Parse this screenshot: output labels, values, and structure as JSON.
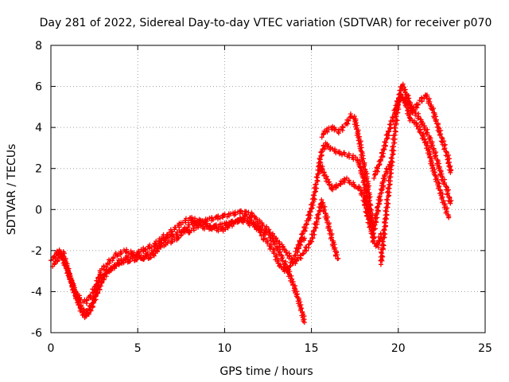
{
  "chart_data": {
    "type": "scatter",
    "title": "Day 281 of 2022, Sidereal Day-to-day VTEC variation (SDTVAR) for receiver p070",
    "xlabel": "GPS time / hours",
    "ylabel": "SDTVAR / TECUs",
    "xlim": [
      0,
      25
    ],
    "ylim": [
      -6,
      8
    ],
    "xticks": [
      0,
      5,
      10,
      15,
      20,
      25
    ],
    "yticks": [
      -6,
      -4,
      -2,
      0,
      2,
      4,
      6,
      8
    ],
    "grid": true,
    "marker": "plus",
    "series": [
      {
        "name": "satellite-track-1",
        "color": "#ff0000",
        "points": [
          [
            0,
            -2.4
          ],
          [
            0.3,
            -2.3
          ],
          [
            0.6,
            -2.2
          ],
          [
            0.9,
            -2.8
          ],
          [
            1.2,
            -3.6
          ],
          [
            1.5,
            -4.3
          ],
          [
            1.8,
            -4.9
          ],
          [
            2.1,
            -5.0
          ],
          [
            2.4,
            -4.6
          ],
          [
            2.7,
            -4.0
          ],
          [
            3.0,
            -3.4
          ],
          [
            3.3,
            -3.0
          ],
          [
            3.6,
            -2.8
          ],
          [
            4.0,
            -2.6
          ],
          [
            4.5,
            -2.5
          ],
          [
            5.0,
            -2.4
          ],
          [
            5.5,
            -2.2
          ],
          [
            6.0,
            -2.0
          ],
          [
            6.5,
            -1.5
          ],
          [
            7.0,
            -1.0
          ],
          [
            7.5,
            -0.7
          ],
          [
            8.0,
            -0.4
          ],
          [
            8.5,
            -0.8
          ],
          [
            9.0,
            -0.9
          ],
          [
            9.5,
            -0.8
          ],
          [
            10.0,
            -0.7
          ],
          [
            10.5,
            -0.6
          ],
          [
            11.0,
            -0.5
          ],
          [
            11.5,
            -0.7
          ],
          [
            12.0,
            -0.9
          ],
          [
            12.5,
            -1.2
          ],
          [
            13.0,
            -1.8
          ],
          [
            13.4,
            -2.5
          ],
          [
            13.8,
            -3.3
          ],
          [
            14.1,
            -4.0
          ],
          [
            14.4,
            -4.8
          ],
          [
            14.6,
            -5.5
          ]
        ]
      },
      {
        "name": "satellite-track-2",
        "color": "#ff0000",
        "points": [
          [
            0.1,
            -2.7
          ],
          [
            0.4,
            -2.5
          ],
          [
            0.7,
            -2.1
          ],
          [
            1.0,
            -3.0
          ],
          [
            1.3,
            -3.9
          ],
          [
            1.6,
            -4.6
          ],
          [
            1.9,
            -5.2
          ],
          [
            2.2,
            -5.1
          ],
          [
            2.5,
            -4.3
          ],
          [
            2.8,
            -3.6
          ],
          [
            3.1,
            -3.1
          ],
          [
            3.5,
            -2.9
          ],
          [
            4.0,
            -2.5
          ],
          [
            4.5,
            -2.3
          ],
          [
            5.0,
            -2.1
          ],
          [
            5.5,
            -1.9
          ],
          [
            6.0,
            -1.7
          ],
          [
            6.5,
            -1.3
          ],
          [
            7.0,
            -1.3
          ],
          [
            7.5,
            -1.0
          ],
          [
            8.0,
            -1.1
          ],
          [
            8.5,
            -0.7
          ],
          [
            9.0,
            -0.5
          ],
          [
            9.5,
            -0.4
          ],
          [
            10.0,
            -0.3
          ],
          [
            10.5,
            -0.2
          ],
          [
            11.0,
            -0.1
          ],
          [
            11.5,
            -0.2
          ],
          [
            12.0,
            -0.6
          ],
          [
            12.5,
            -1.0
          ],
          [
            13.0,
            -1.5
          ],
          [
            13.5,
            -2.0
          ],
          [
            14.0,
            -2.6
          ],
          [
            14.5,
            -2.2
          ],
          [
            15.0,
            -1.5
          ],
          [
            15.3,
            -0.6
          ],
          [
            15.6,
            0.4
          ],
          [
            15.9,
            -0.5
          ],
          [
            16.2,
            -1.5
          ],
          [
            16.5,
            -2.4
          ]
        ]
      },
      {
        "name": "satellite-track-3",
        "color": "#ff0000",
        "points": [
          [
            0.2,
            -2.2
          ],
          [
            0.5,
            -2.0
          ],
          [
            0.8,
            -2.6
          ],
          [
            1.1,
            -3.3
          ],
          [
            1.4,
            -4.0
          ],
          [
            1.7,
            -4.4
          ],
          [
            2.0,
            -4.5
          ],
          [
            2.3,
            -4.2
          ],
          [
            2.6,
            -3.7
          ],
          [
            2.9,
            -3.0
          ],
          [
            3.3,
            -2.6
          ],
          [
            3.8,
            -2.2
          ],
          [
            4.3,
            -2.0
          ],
          [
            4.8,
            -2.2
          ],
          [
            5.3,
            -2.4
          ],
          [
            5.8,
            -2.3
          ],
          [
            6.3,
            -1.8
          ],
          [
            6.8,
            -1.6
          ],
          [
            7.3,
            -1.4
          ],
          [
            7.8,
            -0.9
          ],
          [
            8.3,
            -0.5
          ],
          [
            8.8,
            -0.6
          ],
          [
            9.3,
            -0.9
          ],
          [
            9.8,
            -1.0
          ],
          [
            10.3,
            -0.8
          ],
          [
            10.8,
            -0.5
          ],
          [
            11.3,
            -0.3
          ],
          [
            11.8,
            -0.8
          ],
          [
            12.3,
            -1.4
          ],
          [
            12.8,
            -2.0
          ],
          [
            13.2,
            -2.8
          ],
          [
            13.6,
            -3.0
          ],
          [
            14.0,
            -2.4
          ],
          [
            14.3,
            -1.6
          ],
          [
            14.6,
            -1.4
          ]
        ]
      },
      {
        "name": "satellite-track-4",
        "color": "#ff0000",
        "points": [
          [
            14.2,
            -2.0
          ],
          [
            14.5,
            -1.2
          ],
          [
            14.8,
            -0.5
          ],
          [
            15.1,
            0.4
          ],
          [
            15.3,
            1.4
          ],
          [
            15.5,
            2.2
          ],
          [
            15.8,
            1.6
          ],
          [
            16.2,
            1.0
          ],
          [
            16.6,
            1.2
          ],
          [
            17.0,
            1.5
          ],
          [
            17.4,
            1.2
          ],
          [
            17.8,
            1.0
          ],
          [
            18.0,
            0.6
          ],
          [
            18.3,
            -0.6
          ],
          [
            18.6,
            -1.4
          ]
        ]
      },
      {
        "name": "satellite-track-5",
        "color": "#ff0000",
        "points": [
          [
            15.4,
            2.0
          ],
          [
            15.6,
            2.8
          ],
          [
            15.8,
            3.2
          ],
          [
            16.1,
            3.0
          ],
          [
            16.5,
            2.8
          ],
          [
            16.9,
            2.7
          ],
          [
            17.3,
            2.6
          ],
          [
            17.7,
            2.4
          ],
          [
            18.0,
            1.5
          ],
          [
            18.2,
            0.4
          ],
          [
            18.4,
            -0.6
          ],
          [
            18.6,
            -1.6
          ],
          [
            18.8,
            -1.8
          ],
          [
            19.0,
            -1.2
          ]
        ]
      },
      {
        "name": "satellite-track-6",
        "color": "#ff0000",
        "points": [
          [
            15.6,
            3.6
          ],
          [
            15.9,
            3.9
          ],
          [
            16.2,
            4.0
          ],
          [
            16.6,
            3.8
          ],
          [
            17.0,
            4.2
          ],
          [
            17.3,
            4.6
          ],
          [
            17.5,
            4.4
          ],
          [
            17.8,
            3.2
          ],
          [
            18.0,
            2.2
          ],
          [
            18.2,
            1.5
          ],
          [
            18.4,
            0.0
          ],
          [
            18.6,
            -1.0
          ],
          [
            18.8,
            0.0
          ],
          [
            19.0,
            0.8
          ],
          [
            19.2,
            1.6
          ],
          [
            19.5,
            2.2
          ]
        ]
      },
      {
        "name": "satellite-track-7",
        "color": "#ff0000",
        "points": [
          [
            18.6,
            1.6
          ],
          [
            19.0,
            2.4
          ],
          [
            19.3,
            3.4
          ],
          [
            19.6,
            4.2
          ],
          [
            19.9,
            5.0
          ],
          [
            20.2,
            5.5
          ],
          [
            20.5,
            5.2
          ],
          [
            20.8,
            4.8
          ],
          [
            21.1,
            4.6
          ],
          [
            21.4,
            4.2
          ],
          [
            21.8,
            3.5
          ],
          [
            22.2,
            2.5
          ],
          [
            22.5,
            1.6
          ],
          [
            22.8,
            1.0
          ],
          [
            23.0,
            0.3
          ]
        ]
      },
      {
        "name": "satellite-track-8",
        "color": "#ff0000",
        "points": [
          [
            19.0,
            -2.6
          ],
          [
            19.2,
            -1.0
          ],
          [
            19.4,
            0.6
          ],
          [
            19.6,
            2.2
          ],
          [
            19.8,
            3.8
          ],
          [
            20.0,
            5.2
          ],
          [
            20.2,
            6.1
          ],
          [
            20.5,
            5.6
          ],
          [
            20.8,
            4.8
          ],
          [
            21.2,
            5.2
          ],
          [
            21.6,
            5.6
          ],
          [
            22.0,
            4.8
          ],
          [
            22.3,
            4.0
          ],
          [
            22.6,
            3.2
          ],
          [
            22.9,
            2.4
          ],
          [
            23.0,
            1.8
          ]
        ]
      },
      {
        "name": "satellite-track-9",
        "color": "#ff0000",
        "points": [
          [
            19.8,
            4.8
          ],
          [
            20.1,
            5.6
          ],
          [
            20.4,
            5.2
          ],
          [
            20.7,
            4.4
          ],
          [
            21.0,
            4.2
          ],
          [
            21.3,
            3.8
          ],
          [
            21.7,
            3.0
          ],
          [
            22.0,
            2.0
          ],
          [
            22.3,
            1.2
          ],
          [
            22.6,
            0.4
          ],
          [
            22.9,
            -0.4
          ]
        ]
      }
    ]
  }
}
